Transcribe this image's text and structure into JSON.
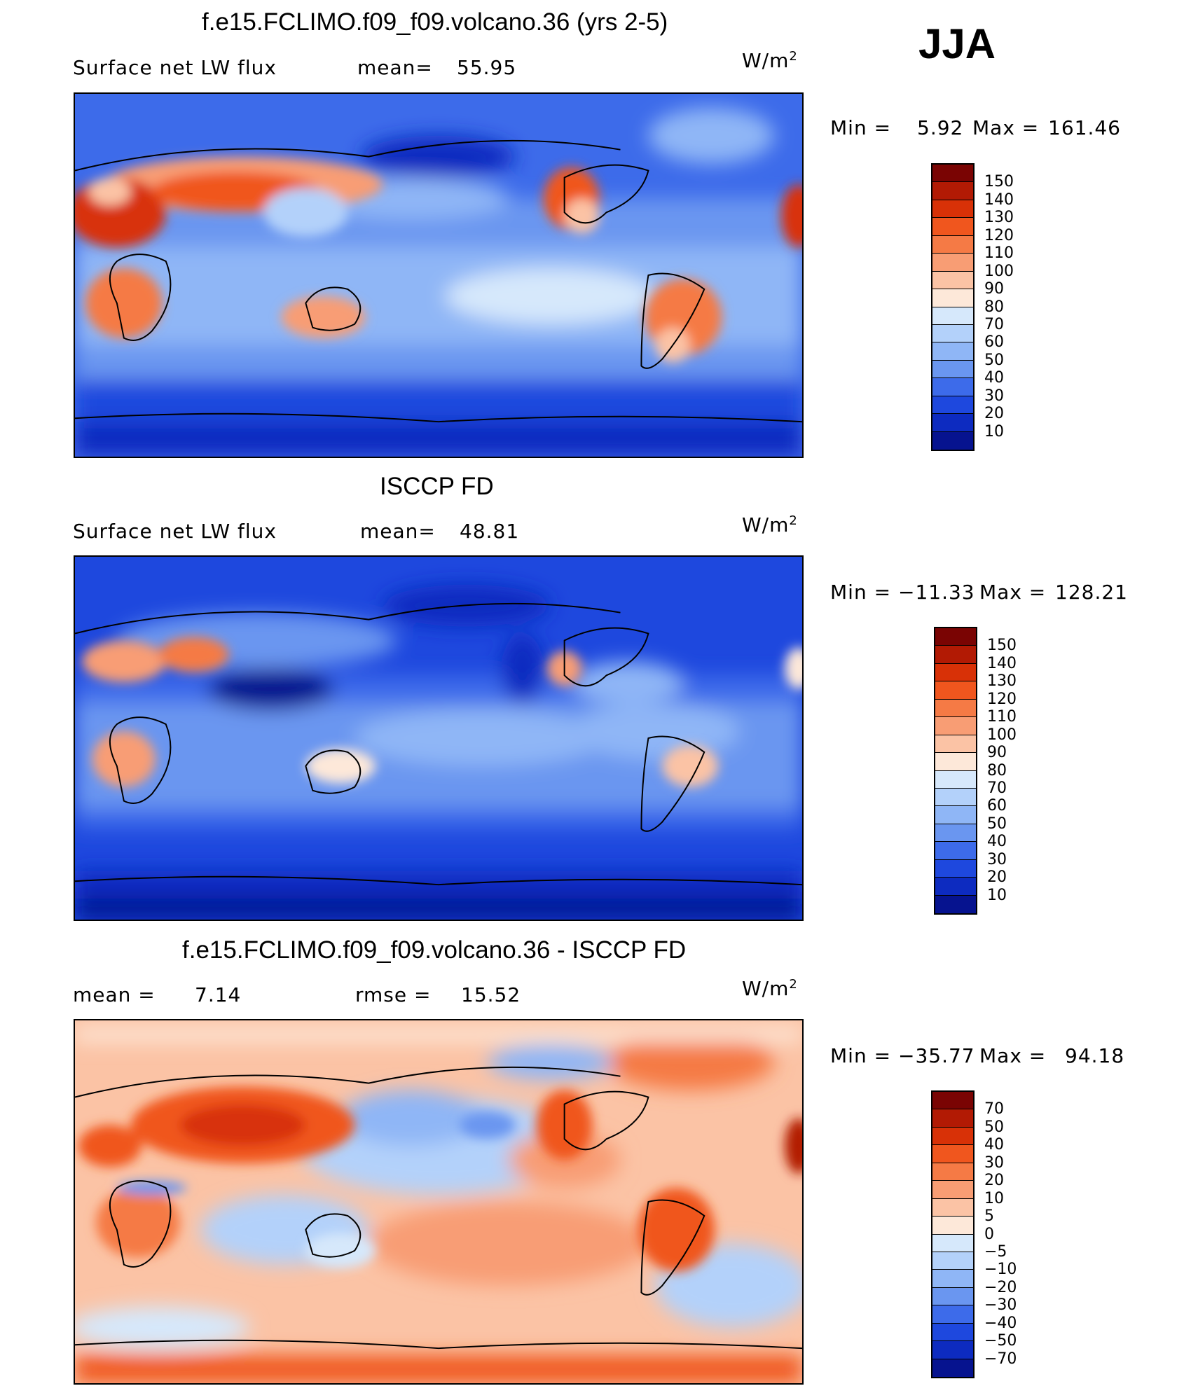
{
  "season": "JJA",
  "units": "W/m",
  "units_exp": "2",
  "panels": [
    {
      "title": "f.e15.FCLIMO.f09_f09.volcano.36 (yrs 2-5)",
      "left_label": "Surface net LW flux",
      "mid_label": "mean=",
      "mid_value": "55.95",
      "min_label": "Min =",
      "min_value": "5.92",
      "max_label": "Max =",
      "max_value": "161.46",
      "colorbar_levels": [
        "150",
        "140",
        "130",
        "120",
        "110",
        "100",
        "90",
        "80",
        "70",
        "60",
        "50",
        "40",
        "30",
        "20",
        "10"
      ],
      "colorbar_colors": [
        "#7a0403",
        "#b21a04",
        "#d83107",
        "#f0561e",
        "#f57a45",
        "#f89d74",
        "#fbc3a5",
        "#fde8d9",
        "#d6e8fb",
        "#b3d1fa",
        "#8fb6f6",
        "#6a96f0",
        "#3d6bea",
        "#1e48de",
        "#0d2bc0",
        "#06138f"
      ]
    },
    {
      "title": "ISCCP FD",
      "left_label": "Surface net LW flux",
      "mid_label": "mean=",
      "mid_value": "48.81",
      "min_label": "Min =",
      "min_value": "−11.33",
      "max_label": "Max =",
      "max_value": "128.21",
      "colorbar_levels": [
        "150",
        "140",
        "130",
        "120",
        "110",
        "100",
        "90",
        "80",
        "70",
        "60",
        "50",
        "40",
        "30",
        "20",
        "10"
      ],
      "colorbar_colors": [
        "#7a0403",
        "#b21a04",
        "#d83107",
        "#f0561e",
        "#f57a45",
        "#f89d74",
        "#fbc3a5",
        "#fde8d9",
        "#d6e8fb",
        "#b3d1fa",
        "#8fb6f6",
        "#6a96f0",
        "#3d6bea",
        "#1e48de",
        "#0d2bc0",
        "#06138f"
      ]
    },
    {
      "title": "f.e15.FCLIMO.f09_f09.volcano.36 - ISCCP FD",
      "left_label": "mean =",
      "left_value": "7.14",
      "mid_label": "rmse =",
      "mid_value": "15.52",
      "min_label": "Min =",
      "min_value": "−35.77",
      "max_label": "Max =",
      "max_value": "94.18",
      "colorbar_levels": [
        "70",
        "50",
        "40",
        "30",
        "20",
        "10",
        "5",
        "0",
        "−5",
        "−10",
        "−20",
        "−30",
        "−40",
        "−50",
        "−70"
      ],
      "colorbar_colors": [
        "#7a0403",
        "#b21a04",
        "#d83107",
        "#f0561e",
        "#f57a45",
        "#f89d74",
        "#fbc3a5",
        "#fde8d9",
        "#d6e8fb",
        "#b3d1fa",
        "#8fb6f6",
        "#6a96f0",
        "#3d6bea",
        "#1e48de",
        "#0d2bc0",
        "#06138f"
      ]
    }
  ]
}
